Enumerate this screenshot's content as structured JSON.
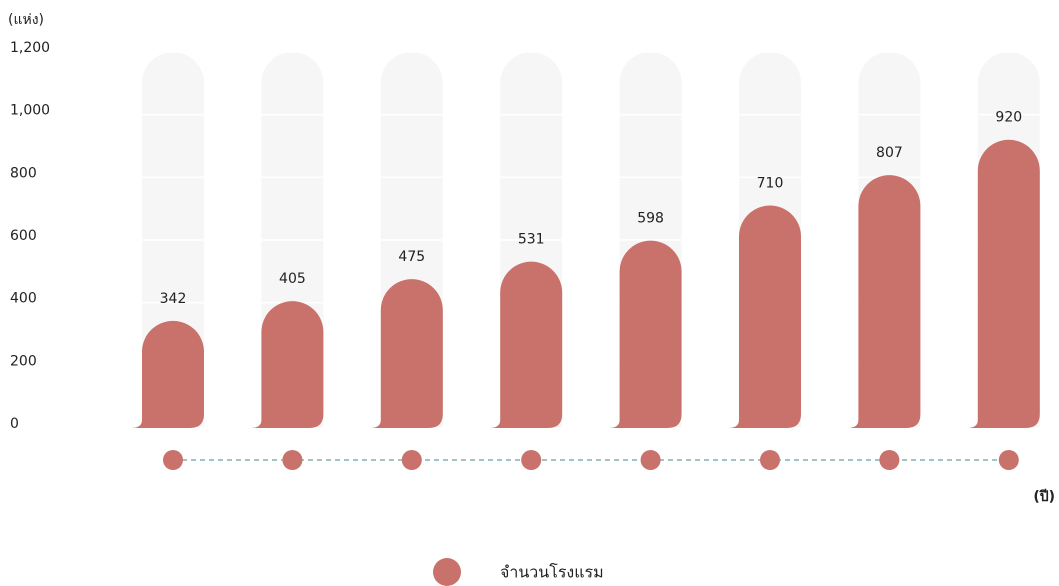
{
  "chart_data": {
    "type": "bar",
    "y_axis_label": "(แห่ง)",
    "x_axis_label": "(ปี)",
    "categories": [
      null,
      null,
      null,
      null,
      null,
      null,
      null,
      null
    ],
    "series": [
      {
        "name": "จำนวนโรงแรม",
        "color": "#c9716b",
        "values": [
          342,
          405,
          475,
          531,
          598,
          710,
          807,
          920
        ]
      }
    ],
    "ylim": [
      0,
      1200
    ],
    "yticks": [
      0,
      200,
      400,
      600,
      800,
      {
        "value": 1000,
        "label": "1,000"
      },
      {
        "value": 1200,
        "label": "1,200"
      }
    ],
    "grid": true
  }
}
